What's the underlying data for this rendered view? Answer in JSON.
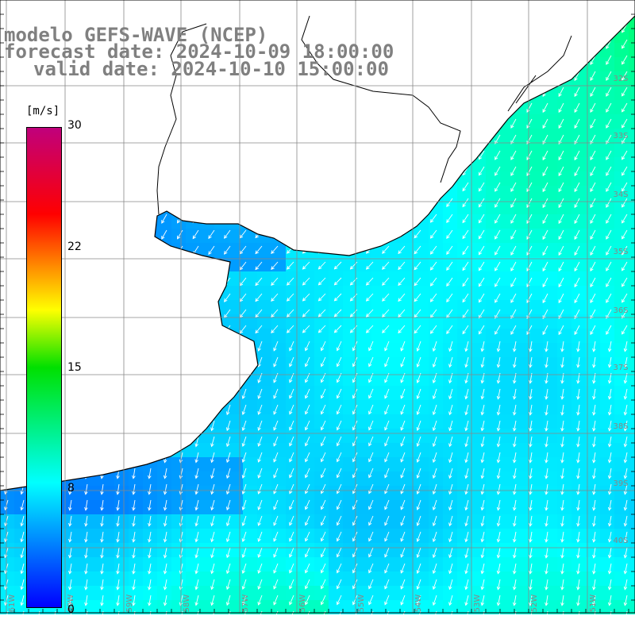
{
  "header": {
    "line1": "modelo GEFS-WAVE (NCEP)",
    "line2": "forecast date: 2024-10-09 18:00:00",
    "line3": "valid date: 2024-10-10 15:00:00"
  },
  "colorbar": {
    "units": "[m/s]",
    "ticks": [
      "30",
      "22",
      "15",
      "8",
      "0"
    ],
    "colors": [
      "#0000ff",
      "#00ffff",
      "#00e000",
      "#ffff00",
      "#ff0000",
      "#c0007c"
    ]
  },
  "map": {
    "lat_labels": [
      "32S",
      "33S",
      "34S",
      "35S",
      "36S",
      "37S",
      "38S",
      "39S",
      "40S"
    ],
    "lon_labels": [
      "61W",
      "60W",
      "59W",
      "58W",
      "57W",
      "56W",
      "55W",
      "54W",
      "53W",
      "52W",
      "51W"
    ],
    "land_color": "#ffffff",
    "coast_color": "#000000",
    "grid_color": "#888888",
    "arrow_color": "#ffffff"
  }
}
